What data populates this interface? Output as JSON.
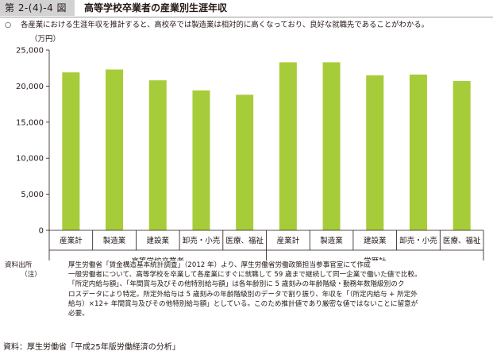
{
  "figure": {
    "number": "第 2-(4)-4 図",
    "title": "高等学校卒業者の産業別生涯年収"
  },
  "summary": {
    "mark": "○",
    "text": "各産業における生涯年収を推計すると、高校卒では製造業は相対的に高くなっており、良好な就職先であることがわかる。"
  },
  "colors": {
    "bar": "#a6cc39",
    "axis": "#231815",
    "grid": "none"
  },
  "chart_data": {
    "type": "bar",
    "ylabel": "（万円）",
    "ylim": [
      0,
      25000
    ],
    "yticks": [
      "0",
      "5,000",
      "10,000",
      "15,000",
      "20,000",
      "25,000"
    ],
    "ytick_values": [
      0,
      5000,
      10000,
      15000,
      20000,
      25000
    ],
    "grid": false,
    "groups": [
      {
        "label": "高等学校卒業者",
        "categories": [
          "産業計",
          "製造業",
          "建設業",
          "卸売・小売",
          "医療、福祉"
        ],
        "values": [
          21900,
          22300,
          20800,
          19400,
          18800
        ]
      },
      {
        "label": "学歴計",
        "categories": [
          "産業計",
          "製造業",
          "建設業",
          "卸売・小売",
          "医療、福祉"
        ],
        "values": [
          23300,
          23300,
          21500,
          21600,
          20700
        ]
      }
    ]
  },
  "notes": {
    "source_label": "資料出所",
    "source_text": "厚生労働省「賃金構造基本統計調査」（2012 年）より、厚生労働省労働政策担当参事官室にて作成",
    "note_label": "（注）",
    "note_lines": [
      "一般労働者について、高等学校を卒業して各産業にすぐに就職して 59 歳まで継続して同一企業で働いた値で比較。",
      "「所定内給与額」、「年間賞与及びその他特別給与額」は各年齢別に 5 歳刻みの年齢階級・勤務年数階級別のク",
      "ロスデータにより特定。所定外給与は 5 歳刻みの年齢階級別のデータで割り振り、年収を「（所定内給与 + 所定外",
      "給与）×12+ 年間賞与及びその他特別給与額」としている。このため推計値であり厳密な値ではないことに留意が",
      "必要。"
    ]
  },
  "footer": {
    "source": "資料：厚生労働省「平成25年版労働経済の分析」"
  }
}
